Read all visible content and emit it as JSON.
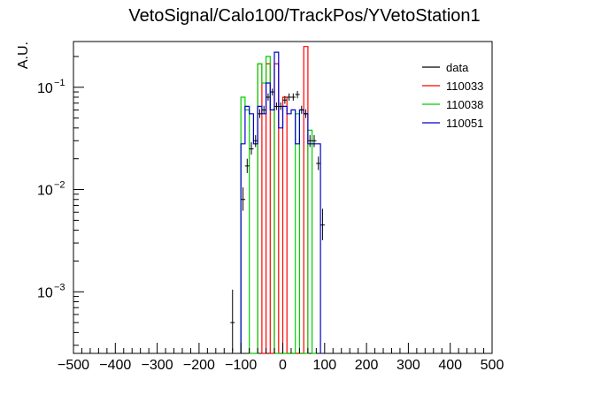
{
  "chart_data": {
    "type": "histogram",
    "title": "VetoSignal/Calo100/TrackPos/YVetoStation1",
    "xlabel": "",
    "ylabel": "A.U.",
    "xlim": [
      -500,
      500
    ],
    "ylim": [
      0.00025,
      0.28
    ],
    "yscale": "log",
    "grid": false,
    "legend_position": "top-right",
    "x_ticks": [
      -500,
      -400,
      -300,
      -200,
      -100,
      0,
      100,
      200,
      300,
      400,
      500
    ],
    "x_tick_labels": [
      "−500",
      "−400",
      "−300",
      "−200",
      "−100",
      "0",
      "100",
      "200",
      "300",
      "400",
      "500"
    ],
    "y_ticks": [
      0.001,
      0.01,
      0.1
    ],
    "y_tick_labels": [
      {
        "base": "10",
        "exp": "−3"
      },
      {
        "base": "10",
        "exp": "−2"
      },
      {
        "base": "10",
        "exp": "−1"
      }
    ],
    "series": [
      {
        "name": "data",
        "color": "#000000",
        "style": "points",
        "points": [
          {
            "x": -120,
            "y": 0.0005,
            "err": [
              0.00026,
              0.00105
            ]
          },
          {
            "x": -95,
            "y": 0.008,
            "err": [
              0.0062,
              0.0105
            ]
          },
          {
            "x": -85,
            "y": 0.017,
            "err": [
              0.0145,
              0.02
            ]
          },
          {
            "x": -75,
            "y": 0.025,
            "err": [
              0.022,
              0.029
            ]
          },
          {
            "x": -65,
            "y": 0.03,
            "err": [
              0.026,
              0.034
            ]
          },
          {
            "x": -55,
            "y": 0.055,
            "err": [
              0.05,
              0.061
            ]
          },
          {
            "x": -45,
            "y": 0.06,
            "err": [
              0.055,
              0.066
            ]
          },
          {
            "x": -35,
            "y": 0.08,
            "err": [
              0.074,
              0.087
            ]
          },
          {
            "x": -25,
            "y": 0.09,
            "err": [
              0.083,
              0.097
            ]
          },
          {
            "x": -15,
            "y": 0.065,
            "err": [
              0.06,
              0.071
            ]
          },
          {
            "x": -5,
            "y": 0.065,
            "err": [
              0.06,
              0.071
            ]
          },
          {
            "x": 5,
            "y": 0.075,
            "err": [
              0.069,
              0.082
            ]
          },
          {
            "x": 15,
            "y": 0.08,
            "err": [
              0.074,
              0.087
            ]
          },
          {
            "x": 25,
            "y": 0.08,
            "err": [
              0.074,
              0.087
            ]
          },
          {
            "x": 35,
            "y": 0.085,
            "err": [
              0.078,
              0.092
            ]
          },
          {
            "x": 45,
            "y": 0.06,
            "err": [
              0.055,
              0.066
            ]
          },
          {
            "x": 55,
            "y": 0.055,
            "err": [
              0.05,
              0.061
            ]
          },
          {
            "x": 65,
            "y": 0.03,
            "err": [
              0.026,
              0.034
            ]
          },
          {
            "x": 75,
            "y": 0.03,
            "err": [
              0.026,
              0.034
            ]
          },
          {
            "x": 85,
            "y": 0.018,
            "err": [
              0.0155,
              0.021
            ]
          },
          {
            "x": 95,
            "y": 0.0045,
            "err": [
              0.0032,
              0.0065
            ]
          }
        ]
      },
      {
        "name": "110033",
        "color": "#ff0000",
        "style": "step",
        "bin_width": 10,
        "bins": [
          {
            "x0": -60,
            "y": 0.17
          },
          {
            "x0": -50,
            "y": 0.00025
          },
          {
            "x0": -40,
            "y": 0.17
          },
          {
            "x0": -30,
            "y": 0.00025
          },
          {
            "x0": -20,
            "y": 0.17
          },
          {
            "x0": -10,
            "y": 0.00025
          },
          {
            "x0": 0,
            "y": 0.08
          },
          {
            "x0": 10,
            "y": 0.00025
          },
          {
            "x0": 20,
            "y": 0.00025
          },
          {
            "x0": 30,
            "y": 0.00025
          },
          {
            "x0": 40,
            "y": 0.00025
          },
          {
            "x0": 50,
            "y": 0.25
          }
        ]
      },
      {
        "name": "110038",
        "color": "#00cc00",
        "style": "step",
        "bin_width": 10,
        "bins": [
          {
            "x0": -100,
            "y": 0.08
          },
          {
            "x0": -90,
            "y": 0.06
          },
          {
            "x0": -80,
            "y": 0.00025
          },
          {
            "x0": -70,
            "y": 0.00025
          },
          {
            "x0": -60,
            "y": 0.17
          },
          {
            "x0": -50,
            "y": 0.11
          },
          {
            "x0": -40,
            "y": 0.2
          },
          {
            "x0": -30,
            "y": 0.06
          },
          {
            "x0": -20,
            "y": 0.00025
          },
          {
            "x0": -10,
            "y": 0.00025
          },
          {
            "x0": 0,
            "y": 0.00025
          },
          {
            "x0": 10,
            "y": 0.00025
          },
          {
            "x0": 20,
            "y": 0.00025
          },
          {
            "x0": 30,
            "y": 0.055
          },
          {
            "x0": 40,
            "y": 0.00025
          },
          {
            "x0": 50,
            "y": 0.00025
          },
          {
            "x0": 60,
            "y": 0.038
          },
          {
            "x0": 70,
            "y": 0.00025
          }
        ]
      },
      {
        "name": "110051",
        "color": "#0000cc",
        "style": "step",
        "bin_width": 10,
        "bins": [
          {
            "x0": -100,
            "y": 0.028
          },
          {
            "x0": -90,
            "y": 0.065
          },
          {
            "x0": -80,
            "y": 0.055
          },
          {
            "x0": -70,
            "y": 0.028
          },
          {
            "x0": -60,
            "y": 0.065
          },
          {
            "x0": -50,
            "y": 0.055
          },
          {
            "x0": -40,
            "y": 0.11
          },
          {
            "x0": -30,
            "y": 0.06
          },
          {
            "x0": -20,
            "y": 0.22
          },
          {
            "x0": -10,
            "y": 0.04
          },
          {
            "x0": 0,
            "y": 0.065
          },
          {
            "x0": 10,
            "y": 0.055
          },
          {
            "x0": 20,
            "y": 0.06
          },
          {
            "x0": 30,
            "y": 0.028
          },
          {
            "x0": 40,
            "y": 0.06
          },
          {
            "x0": 50,
            "y": 0.055
          },
          {
            "x0": 60,
            "y": 0.028
          },
          {
            "x0": 70,
            "y": 0.028
          },
          {
            "x0": 80,
            "y": 0.028
          }
        ]
      }
    ]
  }
}
